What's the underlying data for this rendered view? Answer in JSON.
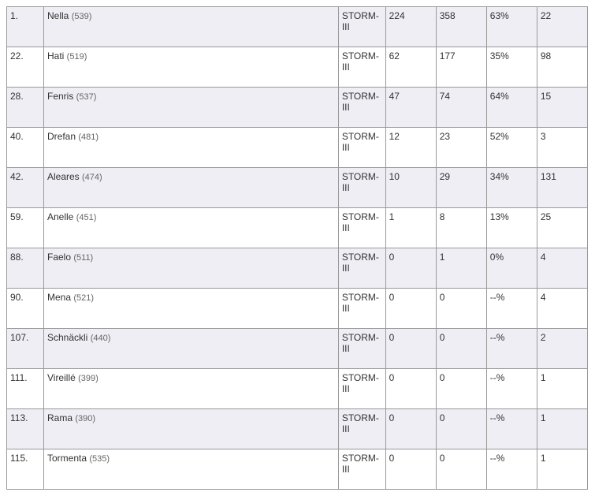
{
  "table": {
    "storm_label": "STORM-III",
    "rows": [
      {
        "rank": "1.",
        "name": "Nella",
        "sub": "(539)",
        "v1": "224",
        "v2": "358",
        "pct": "63%",
        "v4": "22"
      },
      {
        "rank": "22.",
        "name": "Hati",
        "sub": "(519)",
        "v1": "62",
        "v2": "177",
        "pct": "35%",
        "v4": "98"
      },
      {
        "rank": "28.",
        "name": "Fenris",
        "sub": "(537)",
        "v1": "47",
        "v2": "74",
        "pct": "64%",
        "v4": "15"
      },
      {
        "rank": "40.",
        "name": "Drefan",
        "sub": "(481)",
        "v1": "12",
        "v2": "23",
        "pct": "52%",
        "v4": "3"
      },
      {
        "rank": "42.",
        "name": "Aleares",
        "sub": "(474)",
        "v1": "10",
        "v2": "29",
        "pct": "34%",
        "v4": "131"
      },
      {
        "rank": "59.",
        "name": "Anelle",
        "sub": "(451)",
        "v1": "1",
        "v2": "8",
        "pct": "13%",
        "v4": "25"
      },
      {
        "rank": "88.",
        "name": "Faelo",
        "sub": "(511)",
        "v1": "0",
        "v2": "1",
        "pct": "0%",
        "v4": "4"
      },
      {
        "rank": "90.",
        "name": "Mena",
        "sub": "(521)",
        "v1": "0",
        "v2": "0",
        "pct": "--%",
        "v4": "4"
      },
      {
        "rank": "107.",
        "name": "Schnäckli",
        "sub": "(440)",
        "v1": "0",
        "v2": "0",
        "pct": "--%",
        "v4": "2"
      },
      {
        "rank": "111.",
        "name": "Vireillé",
        "sub": "(399)",
        "v1": "0",
        "v2": "0",
        "pct": "--%",
        "v4": "1"
      },
      {
        "rank": "113.",
        "name": "Rama",
        "sub": "(390)",
        "v1": "0",
        "v2": "0",
        "pct": "--%",
        "v4": "1"
      },
      {
        "rank": "115.",
        "name": "Tormenta",
        "sub": "(535)",
        "v1": "0",
        "v2": "0",
        "pct": "--%",
        "v4": "1"
      }
    ]
  }
}
